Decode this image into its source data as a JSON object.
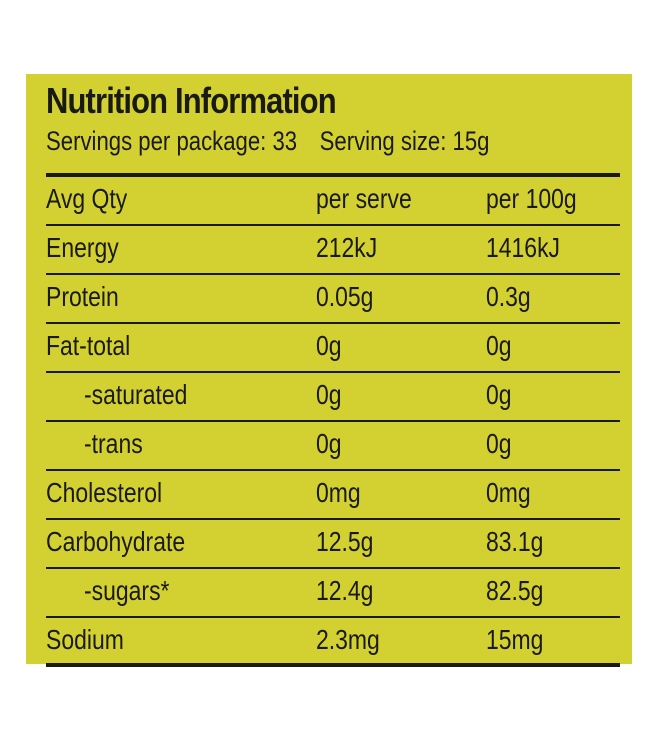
{
  "label": {
    "title": "Nutrition Information",
    "servings_per_package": "Servings per package: 33",
    "serving_size": "Serving size: 15g",
    "header": {
      "name": "Avg Qty",
      "per_serve": "per serve",
      "per_100g": "per 100g"
    },
    "rows": [
      {
        "name": "Energy",
        "per_serve": "212kJ",
        "per_100g": "1416kJ"
      },
      {
        "name": "Protein",
        "per_serve": "0.05g",
        "per_100g": "0.3g"
      },
      {
        "name": "Fat-total",
        "per_serve": "0g",
        "per_100g": "0g"
      },
      {
        "name": "-saturated",
        "per_serve": "0g",
        "per_100g": "0g"
      },
      {
        "name": "-trans",
        "per_serve": "0g",
        "per_100g": "0g"
      },
      {
        "name": "Cholesterol",
        "per_serve": "0mg",
        "per_100g": "0mg"
      },
      {
        "name": "Carbohydrate",
        "per_serve": "12.5g",
        "per_100g": "83.1g"
      },
      {
        "name": "-sugars*",
        "per_serve": "12.4g",
        "per_100g": "82.5g"
      },
      {
        "name": "Sodium",
        "per_serve": "2.3mg",
        "per_100g": "15mg"
      }
    ]
  },
  "colors": {
    "background": "#d3d131",
    "ink": "#1a1a14"
  }
}
